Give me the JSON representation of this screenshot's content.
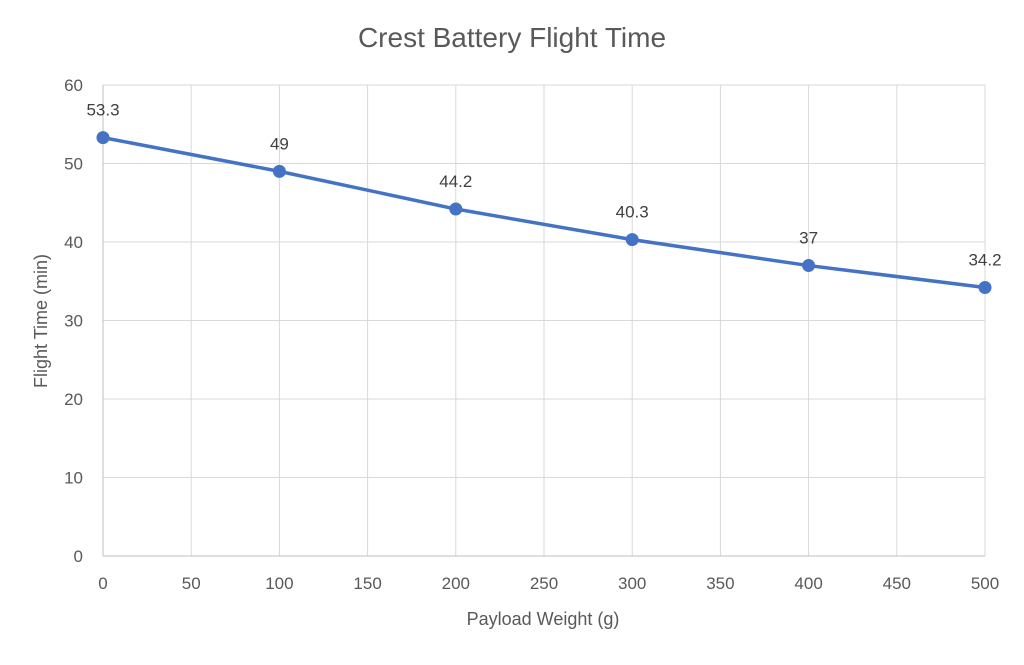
{
  "chart_data": {
    "type": "line",
    "title": "Crest Battery Flight Time",
    "xlabel": "Payload Weight (g)",
    "ylabel": "Flight Time (min)",
    "xlim": [
      0,
      500
    ],
    "ylim": [
      0,
      60
    ],
    "x_ticks": [
      0,
      50,
      100,
      150,
      200,
      250,
      300,
      350,
      400,
      450,
      500
    ],
    "y_ticks": [
      0,
      10,
      20,
      30,
      40,
      50,
      60
    ],
    "grid": true,
    "legend": "none",
    "series": [
      {
        "x": [
          0,
          100,
          200,
          300,
          400,
          500
        ],
        "values": [
          53.3,
          49,
          44.2,
          40.3,
          37,
          34.2
        ],
        "labels": [
          "53.3",
          "49",
          "44.2",
          "40.3",
          "37",
          "34.2"
        ],
        "color": "#4472c4"
      }
    ]
  }
}
